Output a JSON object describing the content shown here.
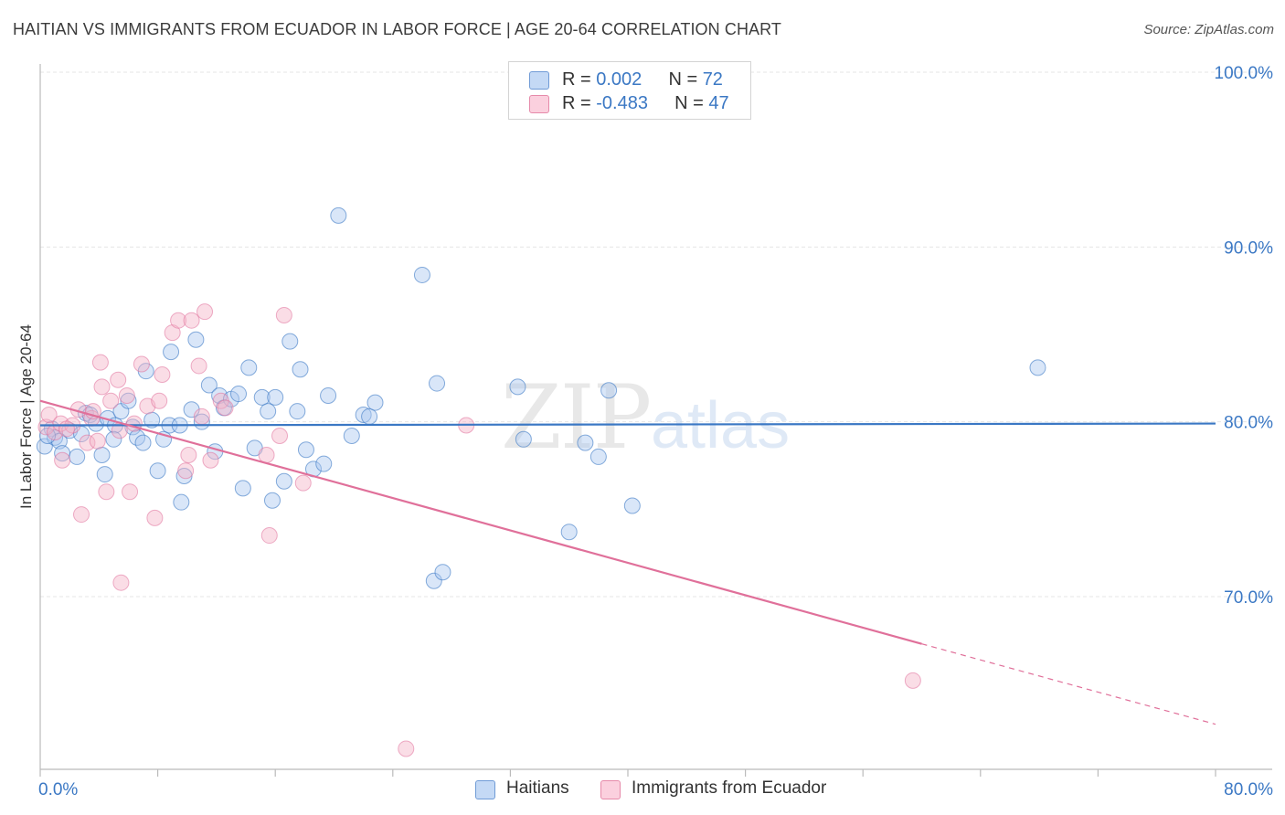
{
  "title": "HAITIAN VS IMMIGRANTS FROM ECUADOR IN LABOR FORCE | AGE 20-64 CORRELATION CHART",
  "source": "Source: ZipAtlas.com",
  "watermark": {
    "zip": "ZIP",
    "atlas": "atlas"
  },
  "colors": {
    "blue": "#3b78c4",
    "blue_fill": "#aac8ef",
    "pink": "#e0709a",
    "pink_fill": "#f5b3c8",
    "grid": "#e6e6e6"
  },
  "legend": {
    "rows": [
      {
        "r_label": "R = ",
        "r_value": "0.002",
        "n_label": "N = ",
        "n_value": "72"
      },
      {
        "r_label": "R = ",
        "r_value": "-0.483",
        "n_label": "N = ",
        "n_value": "47"
      }
    ]
  },
  "chart_data": {
    "type": "scatter",
    "title": "HAITIAN VS IMMIGRANTS FROM ECUADOR IN LABOR FORCE | AGE 20-64 CORRELATION CHART",
    "xlabel": "",
    "ylabel": "In Labor Force | Age 20-64",
    "xlim": [
      0,
      80
    ],
    "ylim": [
      60,
      103
    ],
    "x_tick_labels": [
      "0.0%",
      "80.0%"
    ],
    "y_ticks": [
      70,
      80,
      90,
      100
    ],
    "y_tick_labels": [
      "70.0%",
      "80.0%",
      "90.0%",
      "100.0%"
    ],
    "grid": true,
    "legend_position": "top-center",
    "series": [
      {
        "name": "Haitians",
        "color": "#3b78c4",
        "trend": {
          "x": [
            0,
            80
          ],
          "y": [
            79.8,
            79.9
          ]
        },
        "points": [
          [
            0.3,
            78.6
          ],
          [
            0.8,
            79.6
          ],
          [
            1.0,
            79.1
          ],
          [
            1.3,
            78.9
          ],
          [
            1.5,
            78.2
          ],
          [
            2.0,
            79.5
          ],
          [
            2.5,
            78.0
          ],
          [
            2.8,
            79.3
          ],
          [
            3.1,
            80.5
          ],
          [
            3.4,
            80.4
          ],
          [
            3.8,
            79.9
          ],
          [
            4.2,
            78.1
          ],
          [
            4.4,
            77.0
          ],
          [
            4.6,
            80.2
          ],
          [
            5.1,
            79.8
          ],
          [
            5.5,
            80.6
          ],
          [
            6.0,
            81.2
          ],
          [
            6.3,
            79.7
          ],
          [
            6.6,
            79.1
          ],
          [
            7.0,
            78.8
          ],
          [
            7.2,
            82.9
          ],
          [
            7.6,
            80.1
          ],
          [
            8.0,
            77.2
          ],
          [
            8.4,
            79.0
          ],
          [
            8.8,
            79.8
          ],
          [
            8.9,
            84.0
          ],
          [
            9.5,
            79.8
          ],
          [
            9.6,
            75.4
          ],
          [
            9.8,
            76.9
          ],
          [
            10.3,
            80.7
          ],
          [
            10.6,
            84.7
          ],
          [
            11.0,
            80.0
          ],
          [
            11.5,
            82.1
          ],
          [
            11.9,
            78.3
          ],
          [
            12.2,
            81.5
          ],
          [
            12.5,
            80.8
          ],
          [
            13.0,
            81.3
          ],
          [
            13.5,
            81.6
          ],
          [
            13.8,
            76.2
          ],
          [
            14.2,
            83.1
          ],
          [
            14.6,
            78.5
          ],
          [
            15.1,
            81.4
          ],
          [
            15.5,
            80.6
          ],
          [
            15.8,
            75.5
          ],
          [
            16.0,
            81.4
          ],
          [
            16.6,
            76.6
          ],
          [
            17.0,
            84.6
          ],
          [
            17.5,
            80.6
          ],
          [
            17.7,
            83.0
          ],
          [
            18.1,
            78.4
          ],
          [
            18.6,
            77.3
          ],
          [
            19.3,
            77.6
          ],
          [
            19.6,
            81.5
          ],
          [
            20.3,
            91.8
          ],
          [
            21.2,
            79.2
          ],
          [
            22.0,
            80.4
          ],
          [
            22.4,
            80.3
          ],
          [
            22.8,
            81.1
          ],
          [
            26.0,
            88.4
          ],
          [
            26.8,
            70.9
          ],
          [
            27.0,
            82.2
          ],
          [
            27.4,
            71.4
          ],
          [
            32.5,
            82.0
          ],
          [
            32.9,
            79.0
          ],
          [
            36.0,
            73.7
          ],
          [
            37.1,
            78.8
          ],
          [
            38.0,
            78.0
          ],
          [
            38.7,
            81.8
          ],
          [
            40.3,
            75.2
          ],
          [
            67.9,
            83.1
          ],
          [
            0.5,
            79.2
          ],
          [
            5.0,
            79.0
          ]
        ]
      },
      {
        "name": "Immigrants from Ecuador",
        "color": "#e0709a",
        "trend": {
          "x": [
            0,
            60
          ],
          "y": [
            81.2,
            67.3
          ]
        },
        "trend_dashed": {
          "x": [
            60,
            80
          ],
          "y": [
            67.3,
            62.7
          ]
        },
        "points": [
          [
            0.4,
            79.7
          ],
          [
            0.6,
            80.4
          ],
          [
            1.0,
            79.4
          ],
          [
            1.4,
            79.9
          ],
          [
            1.5,
            77.8
          ],
          [
            2.2,
            79.8
          ],
          [
            2.6,
            80.7
          ],
          [
            2.8,
            74.7
          ],
          [
            3.2,
            78.8
          ],
          [
            3.5,
            80.2
          ],
          [
            3.9,
            78.9
          ],
          [
            4.1,
            83.4
          ],
          [
            4.2,
            82.0
          ],
          [
            4.5,
            76.0
          ],
          [
            4.8,
            81.2
          ],
          [
            5.3,
            82.4
          ],
          [
            5.5,
            70.8
          ],
          [
            5.9,
            81.5
          ],
          [
            6.1,
            76.0
          ],
          [
            6.4,
            79.9
          ],
          [
            6.9,
            83.3
          ],
          [
            7.3,
            80.9
          ],
          [
            7.8,
            74.5
          ],
          [
            8.1,
            81.2
          ],
          [
            8.3,
            82.7
          ],
          [
            9.0,
            85.1
          ],
          [
            9.4,
            85.8
          ],
          [
            9.9,
            77.2
          ],
          [
            10.1,
            78.1
          ],
          [
            10.3,
            85.8
          ],
          [
            10.8,
            83.2
          ],
          [
            11.2,
            86.3
          ],
          [
            11.6,
            77.8
          ],
          [
            12.3,
            81.2
          ],
          [
            12.6,
            80.8
          ],
          [
            15.4,
            78.1
          ],
          [
            15.6,
            73.5
          ],
          [
            16.3,
            79.2
          ],
          [
            16.6,
            86.1
          ],
          [
            17.9,
            76.5
          ],
          [
            24.9,
            61.3
          ],
          [
            29.0,
            79.8
          ],
          [
            59.4,
            65.2
          ],
          [
            1.8,
            79.6
          ],
          [
            3.6,
            80.6
          ],
          [
            5.4,
            79.5
          ],
          [
            11.0,
            80.3
          ]
        ]
      }
    ]
  }
}
